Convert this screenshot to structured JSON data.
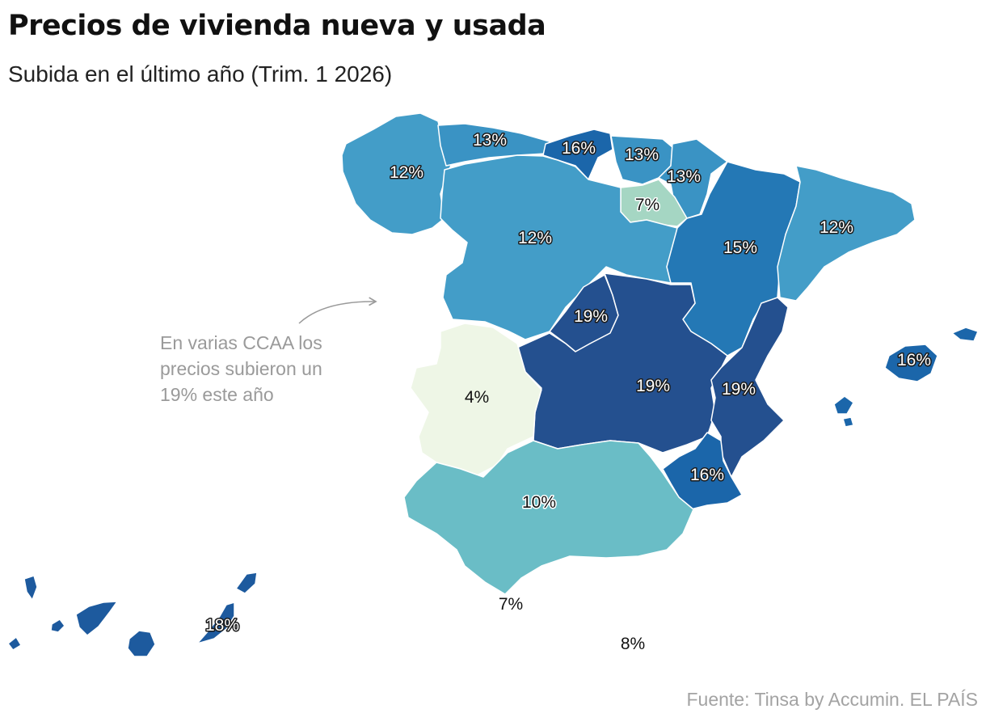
{
  "header": {
    "title": "Precios de vivienda nueva y usada",
    "subtitle": "Subida en el último año (Trim. 1 2026)"
  },
  "annotation": {
    "text_lines": [
      "En varias CCAA los",
      "precios subieron un",
      "19% este año"
    ]
  },
  "source": "Fuente: Tinsa by Accumin. EL PAÍS",
  "colors": {
    "4": "#eef6e6",
    "7": "#a5d6c3",
    "10": "#6abdc6",
    "12": "#439dc8",
    "13": "#3a93c4",
    "15": "#2478b5",
    "16": "#1b66aa",
    "18": "#1d5a9e",
    "19": "#24508f",
    "border": "#ffffff",
    "annotation": "#9a9a9a"
  },
  "map_data": {
    "metric": "Subida en el último año (%)",
    "regions": [
      {
        "id": "galicia",
        "value": 12,
        "label": "12%"
      },
      {
        "id": "asturias",
        "value": 13,
        "label": "13%"
      },
      {
        "id": "cantabria",
        "value": 16,
        "label": "16%"
      },
      {
        "id": "pais-vasco",
        "value": 13,
        "label": "13%"
      },
      {
        "id": "navarra",
        "value": 13,
        "label": "13%"
      },
      {
        "id": "la-rioja",
        "value": 7,
        "label": "7%"
      },
      {
        "id": "castilla-y-leon",
        "value": 12,
        "label": "12%"
      },
      {
        "id": "aragon",
        "value": 15,
        "label": "15%"
      },
      {
        "id": "cataluna",
        "value": 12,
        "label": "12%"
      },
      {
        "id": "madrid",
        "value": 19,
        "label": "19%"
      },
      {
        "id": "castilla-la-mancha",
        "value": 19,
        "label": "19%"
      },
      {
        "id": "comunidad-valenciana",
        "value": 19,
        "label": "19%"
      },
      {
        "id": "extremadura",
        "value": 4,
        "label": "4%"
      },
      {
        "id": "murcia",
        "value": 16,
        "label": "16%"
      },
      {
        "id": "andalucia",
        "value": 10,
        "label": "10%"
      },
      {
        "id": "baleares",
        "value": 16,
        "label": "16%"
      },
      {
        "id": "canarias",
        "value": 18,
        "label": "18%"
      },
      {
        "id": "ceuta",
        "value": 7,
        "label": "7%"
      },
      {
        "id": "melilla",
        "value": 8,
        "label": "8%"
      }
    ]
  }
}
